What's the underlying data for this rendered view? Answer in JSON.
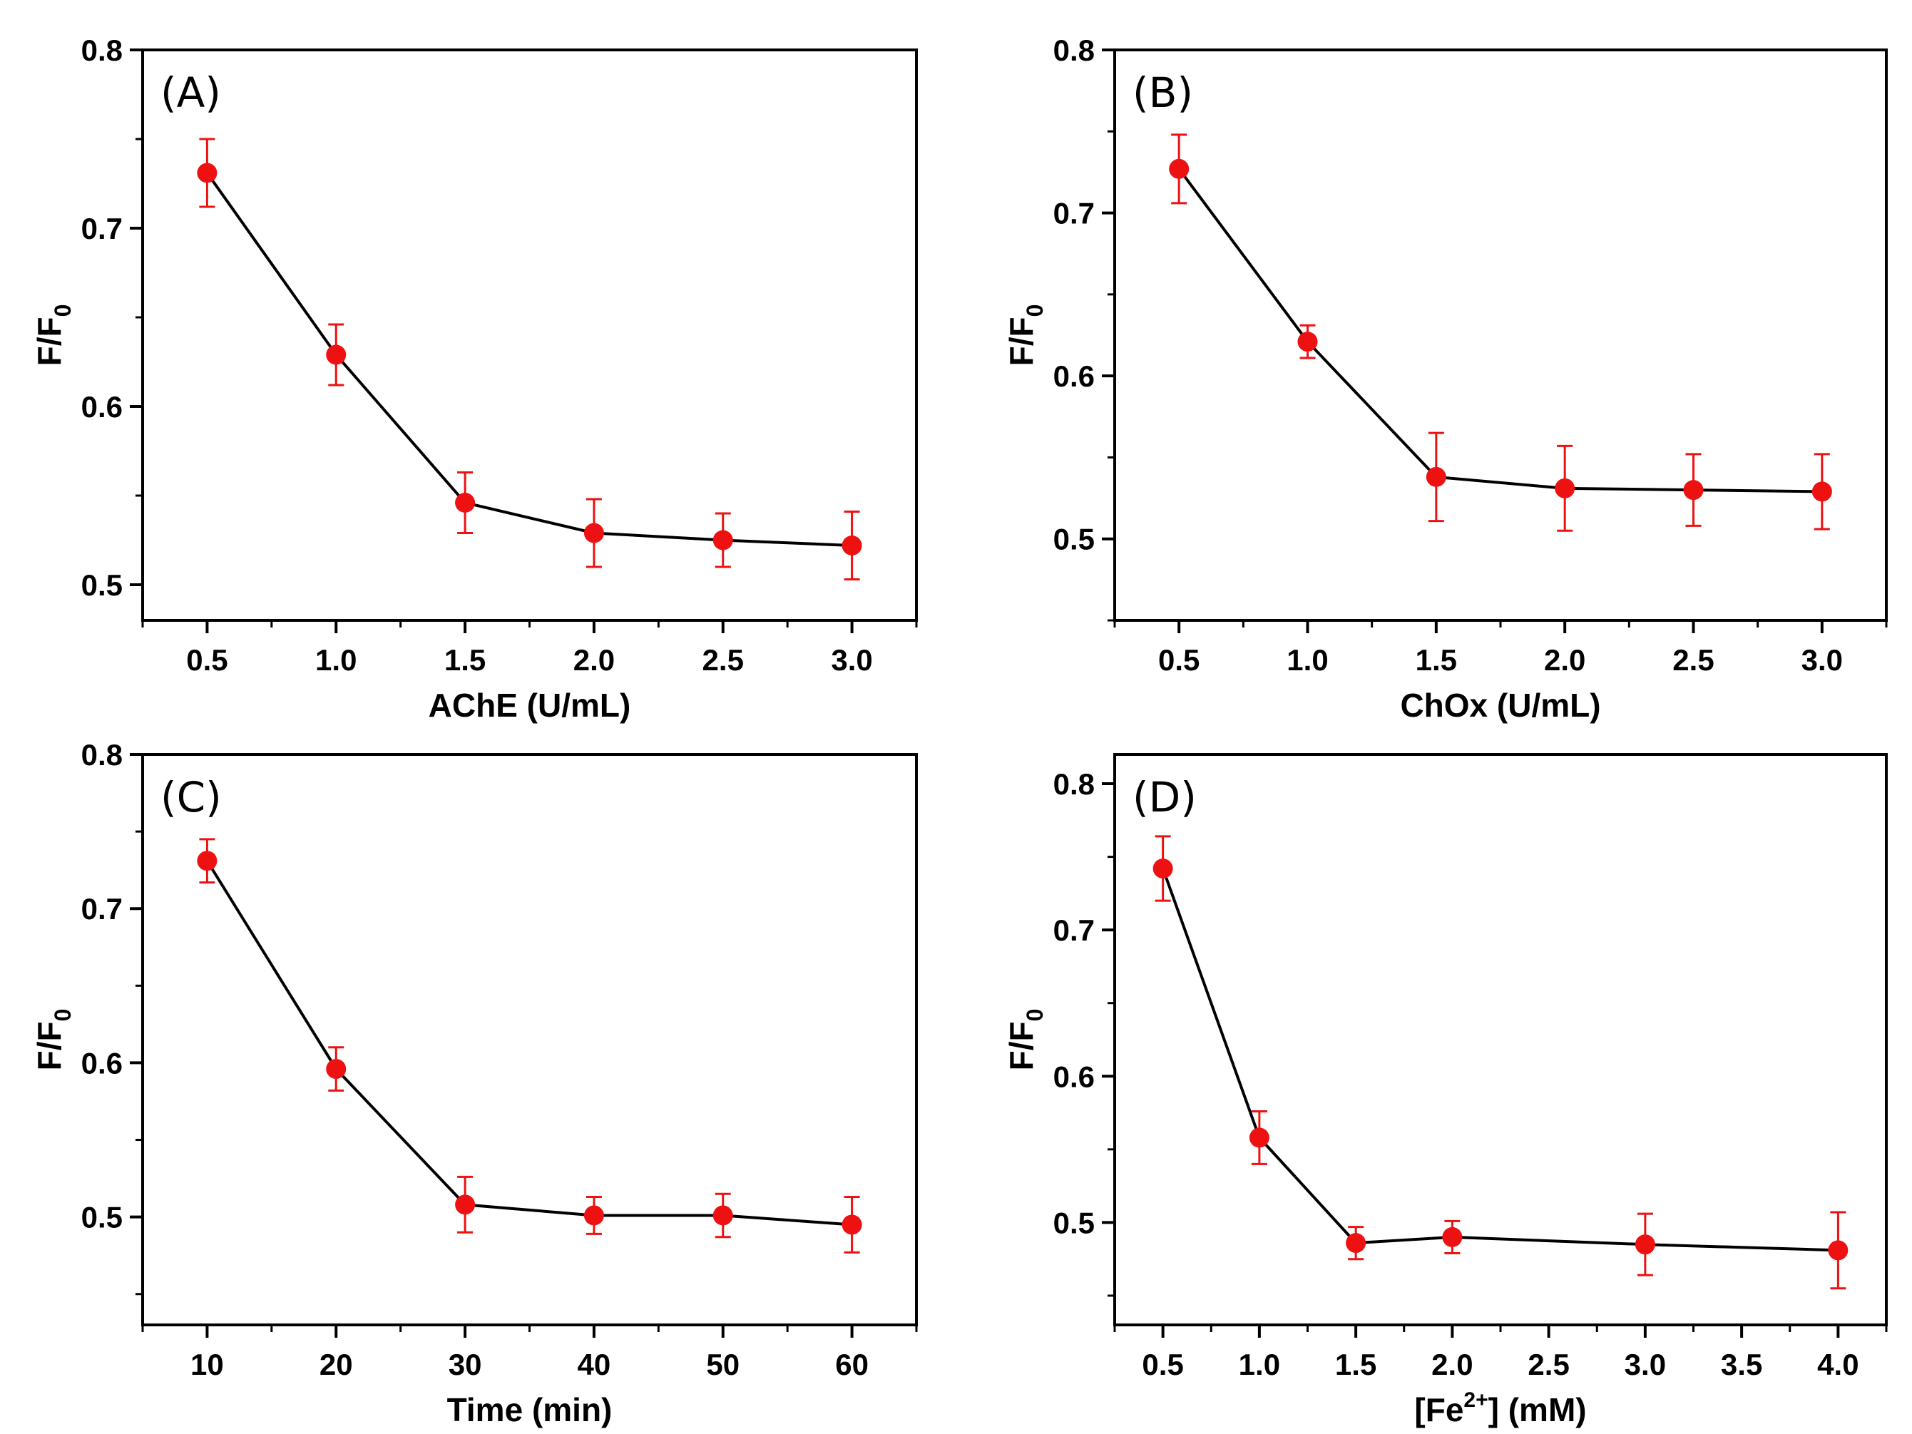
{
  "figure": {
    "background": "#ffffff"
  },
  "style": {
    "line_color": "#000000",
    "marker_color": "#ee1111",
    "errorbar_color": "#ee1111"
  },
  "chart_data": [
    {
      "type": "line",
      "panel_label": "(A)",
      "xlabel": "AChE (U/mL)",
      "ylabel": "F/F0",
      "ylabel_main": "F/F",
      "ylabel_sub": "0",
      "xlim": [
        0.25,
        3.25
      ],
      "ylim": [
        0.48,
        0.8
      ],
      "xticks": [
        "0.5",
        "1.0",
        "1.5",
        "2.0",
        "2.5",
        "3.0"
      ],
      "xtick_values": [
        0.5,
        1.0,
        1.5,
        2.0,
        2.5,
        3.0
      ],
      "yticks": [
        "0.5",
        "0.6",
        "0.7",
        "0.8"
      ],
      "ytick_values": [
        0.5,
        0.6,
        0.7,
        0.8
      ],
      "series": [
        {
          "x": [
            0.5,
            1.0,
            1.5,
            2.0,
            2.5,
            3.0
          ],
          "y": [
            0.731,
            0.629,
            0.546,
            0.529,
            0.525,
            0.522
          ],
          "error": [
            0.019,
            0.017,
            0.017,
            0.019,
            0.015,
            0.019
          ]
        }
      ]
    },
    {
      "type": "line",
      "panel_label": "(B)",
      "xlabel": "ChOx (U/mL)",
      "ylabel": "F/F0",
      "ylabel_main": "F/F",
      "ylabel_sub": "0",
      "xlim": [
        0.25,
        3.25
      ],
      "ylim": [
        0.45,
        0.8
      ],
      "xticks": [
        "0.5",
        "1.0",
        "1.5",
        "2.0",
        "2.5",
        "3.0"
      ],
      "xtick_values": [
        0.5,
        1.0,
        1.5,
        2.0,
        2.5,
        3.0
      ],
      "yticks": [
        "0.5",
        "0.6",
        "0.7",
        "0.8"
      ],
      "ytick_values": [
        0.5,
        0.6,
        0.7,
        0.8
      ],
      "series": [
        {
          "x": [
            0.5,
            1.0,
            1.5,
            2.0,
            2.5,
            3.0
          ],
          "y": [
            0.727,
            0.621,
            0.538,
            0.531,
            0.53,
            0.529
          ],
          "error": [
            0.021,
            0.01,
            0.027,
            0.026,
            0.022,
            0.023
          ]
        }
      ]
    },
    {
      "type": "line",
      "panel_label": "(C)",
      "xlabel": "Time (min)",
      "ylabel": "F/F0",
      "ylabel_main": "F/F",
      "ylabel_sub": "0",
      "xlim": [
        5,
        65
      ],
      "ylim": [
        0.43,
        0.8
      ],
      "xticks": [
        "10",
        "20",
        "30",
        "40",
        "50",
        "60"
      ],
      "xtick_values": [
        10,
        20,
        30,
        40,
        50,
        60
      ],
      "yticks": [
        "0.5",
        "0.6",
        "0.7",
        "0.8"
      ],
      "ytick_values": [
        0.5,
        0.6,
        0.7,
        0.8
      ],
      "series": [
        {
          "x": [
            10,
            20,
            30,
            40,
            50,
            60
          ],
          "y": [
            0.731,
            0.596,
            0.508,
            0.501,
            0.501,
            0.495
          ],
          "error": [
            0.014,
            0.014,
            0.018,
            0.012,
            0.014,
            0.018
          ]
        }
      ]
    },
    {
      "type": "line",
      "panel_label": "(D)",
      "xlabel": "[Fe2+] (mM)",
      "xlabel_pre": "[Fe",
      "xlabel_sup": "2+",
      "xlabel_post": "] (mM)",
      "ylabel": "F/F0",
      "ylabel_main": "F/F",
      "ylabel_sub": "0",
      "xlim": [
        0.25,
        4.25
      ],
      "ylim": [
        0.43,
        0.82
      ],
      "xticks": [
        "0.5",
        "1.0",
        "1.5",
        "2.0",
        "2.5",
        "3.0",
        "3.5",
        "4.0"
      ],
      "xtick_values": [
        0.5,
        1.0,
        1.5,
        2.0,
        2.5,
        3.0,
        3.5,
        4.0
      ],
      "yticks": [
        "0.5",
        "0.6",
        "0.7",
        "0.8"
      ],
      "ytick_values": [
        0.5,
        0.6,
        0.7,
        0.8
      ],
      "series": [
        {
          "x": [
            0.5,
            1.0,
            1.5,
            2.0,
            3.0,
            4.0
          ],
          "y": [
            0.742,
            0.558,
            0.486,
            0.49,
            0.485,
            0.481
          ],
          "error": [
            0.022,
            0.018,
            0.011,
            0.011,
            0.021,
            0.026
          ]
        }
      ]
    }
  ]
}
